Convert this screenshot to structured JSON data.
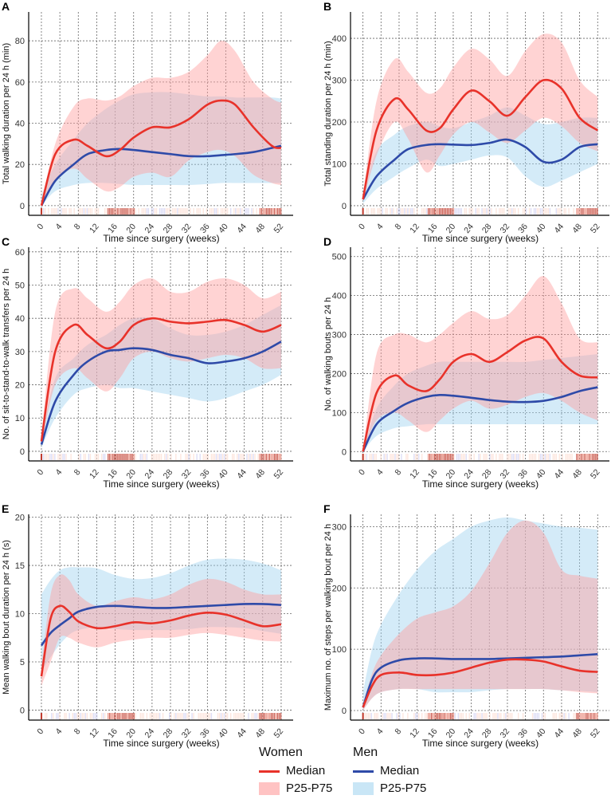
{
  "colors": {
    "women_median": "#e8322a",
    "women_band": "#ff9e9e",
    "men_median": "#2e4aa8",
    "men_band": "#9fd3f0"
  },
  "legend": {
    "women": {
      "title": "Women",
      "median": "Median",
      "band": "P25-P75"
    },
    "men": {
      "title": "Men",
      "median": "Median",
      "band": "P25-P75"
    }
  },
  "chart_data": [
    {
      "panel": "A",
      "type": "line",
      "xlabel": "Time since surgery (weeks)",
      "ylabel": "Total walking duration per 24 h (min)",
      "xlim": [
        -2.76,
        54.6
      ],
      "ylim": [
        -4.7,
        94
      ],
      "xticks": [
        0,
        4,
        8,
        12,
        16,
        20,
        24,
        28,
        32,
        36,
        40,
        44,
        48,
        52
      ],
      "yticks": [
        0,
        20,
        40,
        60,
        80
      ],
      "x": [
        0,
        3,
        7,
        10,
        14,
        17,
        20,
        24,
        28,
        32,
        36,
        39,
        42,
        46,
        50,
        52
      ],
      "series": [
        {
          "name": "Women P25",
          "values": [
            0,
            12,
            18,
            13,
            7,
            9,
            14,
            16,
            14,
            22,
            26,
            27,
            24,
            15,
            11,
            10
          ]
        },
        {
          "name": "Women P75",
          "values": [
            0,
            30,
            48,
            52,
            51,
            53,
            58,
            62,
            62,
            65,
            73,
            80,
            75,
            60,
            52,
            50
          ]
        },
        {
          "name": "Women Median",
          "values": [
            0,
            25,
            32,
            29,
            24,
            27,
            33,
            38,
            38,
            42,
            49,
            51,
            49,
            38,
            29,
            28
          ]
        },
        {
          "name": "Men P25",
          "values": [
            0,
            7,
            10,
            11,
            11,
            10.5,
            10,
            10,
            10,
            10,
            10.5,
            11,
            11,
            11,
            11,
            11
          ]
        },
        {
          "name": "Men P75",
          "values": [
            5,
            20,
            32,
            40,
            47,
            51,
            54,
            55,
            55,
            54,
            53,
            53,
            52.5,
            52.5,
            52.5,
            52
          ]
        },
        {
          "name": "Men Median",
          "values": [
            0,
            12,
            20,
            25,
            27,
            27.5,
            27,
            26,
            25,
            24,
            24,
            24.5,
            25,
            26,
            28,
            29
          ]
        }
      ]
    },
    {
      "panel": "B",
      "type": "line",
      "xlabel": "Time since surgery (weeks)",
      "ylabel": "Total standing duration per 24 h (min)",
      "xlim": [
        -2.76,
        54.6
      ],
      "ylim": [
        -23,
        463
      ],
      "xticks": [
        0,
        4,
        8,
        12,
        16,
        20,
        24,
        28,
        32,
        36,
        40,
        44,
        48,
        52
      ],
      "yticks": [
        0,
        100,
        200,
        300,
        400
      ],
      "x": [
        0,
        3,
        7,
        10,
        14,
        17,
        20,
        24,
        28,
        32,
        36,
        40,
        44,
        48,
        52
      ],
      "series": [
        {
          "name": "Women P25",
          "values": [
            10,
            120,
            200,
            160,
            80,
            120,
            170,
            200,
            175,
            150,
            180,
            210,
            190,
            150,
            130
          ]
        },
        {
          "name": "Women P75",
          "values": [
            20,
            250,
            350,
            320,
            270,
            280,
            330,
            375,
            350,
            310,
            370,
            410,
            390,
            300,
            260
          ]
        },
        {
          "name": "Women Median",
          "values": [
            15,
            180,
            255,
            230,
            180,
            185,
            230,
            275,
            250,
            215,
            260,
            300,
            280,
            210,
            180
          ]
        },
        {
          "name": "Men P25",
          "values": [
            5,
            40,
            70,
            90,
            110,
            95,
            100,
            110,
            120,
            115,
            70,
            45,
            60,
            80,
            100
          ]
        },
        {
          "name": "Men P75",
          "values": [
            30,
            130,
            170,
            190,
            200,
            190,
            185,
            200,
            215,
            235,
            215,
            195,
            200,
            210,
            210
          ]
        },
        {
          "name": "Men Median",
          "values": [
            15,
            70,
            110,
            135,
            145,
            147,
            146,
            145,
            150,
            158,
            140,
            105,
            110,
            140,
            147
          ]
        }
      ]
    },
    {
      "panel": "C",
      "type": "line",
      "xlabel": "Time since surgery (weeks)",
      "ylabel": "No. of sit-to-stand-to-walk transfers per 24 h",
      "xlim": [
        -2.76,
        54.6
      ],
      "ylim": [
        -2.9,
        61.4
      ],
      "xticks": [
        0,
        4,
        8,
        12,
        16,
        20,
        24,
        28,
        32,
        36,
        40,
        44,
        48,
        52
      ],
      "yticks": [
        0,
        10,
        20,
        30,
        40,
        50,
        60
      ],
      "x": [
        0,
        3,
        7,
        10,
        14,
        17,
        20,
        24,
        28,
        32,
        36,
        40,
        44,
        48,
        52
      ],
      "series": [
        {
          "name": "Women P25",
          "values": [
            2,
            20,
            25,
            22,
            18,
            22,
            28,
            30,
            28,
            27,
            28,
            29,
            28,
            25,
            25
          ]
        },
        {
          "name": "Women P75",
          "values": [
            4,
            42,
            49,
            46,
            42,
            45,
            50,
            52,
            48,
            48,
            51,
            52,
            50,
            46,
            48
          ]
        },
        {
          "name": "Women Median",
          "values": [
            3,
            30,
            38,
            35,
            31,
            33,
            38,
            40,
            39,
            38.5,
            39,
            39.5,
            38,
            36,
            38
          ]
        },
        {
          "name": "Men P25",
          "values": [
            1,
            10,
            17,
            19,
            20,
            19,
            19,
            18,
            17,
            16,
            15,
            16,
            18,
            20,
            23
          ]
        },
        {
          "name": "Men P75",
          "values": [
            4,
            22,
            28,
            32,
            35,
            38,
            40,
            40,
            37,
            35,
            35,
            36,
            38,
            41,
            44
          ]
        },
        {
          "name": "Men Median",
          "values": [
            2,
            15,
            23,
            27,
            30,
            30.5,
            31,
            30.5,
            29,
            28,
            26.5,
            27,
            28,
            30,
            33
          ]
        }
      ]
    },
    {
      "panel": "D",
      "type": "line",
      "xlabel": "Time since surgery (weeks)",
      "ylabel": "No. of walking bouts per 24 h",
      "xlim": [
        -2.76,
        54.6
      ],
      "ylim": [
        -24,
        524
      ],
      "xticks": [
        0,
        4,
        8,
        12,
        16,
        20,
        24,
        28,
        32,
        36,
        40,
        44,
        48,
        52
      ],
      "yticks": [
        0,
        100,
        200,
        300,
        400,
        500
      ],
      "x": [
        0,
        3,
        7,
        10,
        14,
        17,
        20,
        24,
        28,
        32,
        36,
        40,
        44,
        48,
        52
      ],
      "series": [
        {
          "name": "Women P25",
          "values": [
            0,
            80,
            100,
            80,
            50,
            80,
            110,
            130,
            110,
            120,
            140,
            150,
            130,
            100,
            80
          ]
        },
        {
          "name": "Women P75",
          "values": [
            0,
            250,
            300,
            300,
            280,
            300,
            330,
            360,
            340,
            350,
            400,
            450,
            380,
            290,
            280
          ]
        },
        {
          "name": "Women Median",
          "values": [
            0,
            150,
            195,
            170,
            155,
            185,
            230,
            250,
            230,
            255,
            285,
            290,
            230,
            195,
            190
          ]
        },
        {
          "name": "Men P25",
          "values": [
            0,
            40,
            60,
            65,
            70,
            70,
            70,
            70,
            70,
            70,
            70,
            70,
            70,
            70,
            70
          ]
        },
        {
          "name": "Men P75",
          "values": [
            0,
            110,
            170,
            200,
            220,
            230,
            230,
            230,
            230,
            230,
            230,
            235,
            240,
            245,
            250
          ]
        },
        {
          "name": "Men Median",
          "values": [
            0,
            70,
            105,
            125,
            140,
            145,
            143,
            138,
            132,
            128,
            127,
            130,
            140,
            155,
            165
          ]
        }
      ]
    },
    {
      "panel": "E",
      "type": "line",
      "xlabel": "Time since surgery (weeks)",
      "ylabel": "Mean walking bout duration per 24 h (s)",
      "xlim": [
        -2.76,
        54.6
      ],
      "ylim": [
        -1.04,
        20.3
      ],
      "xticks": [
        0,
        4,
        8,
        12,
        16,
        20,
        24,
        28,
        32,
        36,
        40,
        44,
        48,
        52
      ],
      "yticks": [
        0,
        5,
        10,
        15,
        20
      ],
      "x": [
        0,
        2,
        4,
        6,
        8,
        12,
        16,
        20,
        24,
        28,
        32,
        36,
        40,
        44,
        48,
        52
      ],
      "series": [
        {
          "name": "Women P25",
          "values": [
            2.5,
            5,
            7.5,
            7.5,
            7,
            6.5,
            7,
            7.3,
            7.5,
            7.5,
            7.8,
            8,
            7.8,
            7.5,
            7.2,
            7.1
          ]
        },
        {
          "name": "Women P75",
          "values": [
            4.5,
            12,
            14,
            13.5,
            12,
            10.8,
            11.3,
            11.7,
            11.5,
            12,
            13,
            13.6,
            13.3,
            12.5,
            12,
            12
          ]
        },
        {
          "name": "Women Median",
          "values": [
            3.5,
            9.5,
            10.8,
            10.2,
            9.2,
            8.5,
            8.7,
            9.1,
            9.0,
            9.3,
            9.8,
            10.1,
            9.9,
            9.3,
            8.7,
            8.9
          ]
        },
        {
          "name": "Men P25",
          "values": [
            4,
            5.5,
            6.8,
            7.8,
            8.3,
            8.6,
            8.4,
            8.3,
            8.3,
            8.3,
            8.4,
            8.6,
            8.6,
            8.5,
            8.2,
            7.9
          ]
        },
        {
          "name": "Men P75",
          "values": [
            12,
            13.5,
            14.5,
            14.8,
            14.8,
            14.7,
            14,
            13.6,
            13.7,
            14.2,
            15,
            15.6,
            15.7,
            15.6,
            15.2,
            14.5
          ]
        },
        {
          "name": "Men Median",
          "values": [
            6.7,
            8,
            8.8,
            9.5,
            10.2,
            10.7,
            10.8,
            10.7,
            10.6,
            10.6,
            10.7,
            10.8,
            10.9,
            11,
            11,
            10.9
          ]
        }
      ]
    },
    {
      "panel": "F",
      "type": "line",
      "xlabel": "Time since surgery (weeks)",
      "ylabel": "Maximum no. of steps per walking bout per 24 h",
      "xlim": [
        -2.76,
        54.6
      ],
      "ylim": [
        -15.6,
        320
      ],
      "xticks": [
        0,
        4,
        8,
        12,
        16,
        20,
        24,
        28,
        32,
        36,
        40,
        44,
        48,
        52
      ],
      "yticks": [
        0,
        100,
        200,
        300
      ],
      "x": [
        0,
        2,
        4,
        8,
        12,
        16,
        20,
        24,
        28,
        32,
        36,
        40,
        44,
        48,
        52
      ],
      "series": [
        {
          "name": "Women P25",
          "values": [
            0,
            20,
            30,
            35,
            35,
            35,
            35,
            35,
            35,
            35,
            35,
            35,
            33,
            30,
            28
          ]
        },
        {
          "name": "Women P75",
          "values": [
            10,
            60,
            90,
            125,
            150,
            160,
            170,
            195,
            240,
            290,
            310,
            290,
            230,
            220,
            215
          ]
        },
        {
          "name": "Women Median",
          "values": [
            5,
            40,
            58,
            62,
            58,
            58,
            62,
            70,
            78,
            83,
            83,
            80,
            72,
            65,
            63
          ]
        },
        {
          "name": "Men P25",
          "values": [
            0,
            20,
            30,
            35,
            35,
            30,
            30,
            30,
            33,
            35,
            35,
            35,
            33,
            32,
            30
          ]
        },
        {
          "name": "Men P75",
          "values": [
            30,
            100,
            140,
            190,
            230,
            260,
            280,
            300,
            310,
            315,
            310,
            305,
            300,
            298,
            295
          ]
        },
        {
          "name": "Men Median",
          "values": [
            5,
            50,
            70,
            82,
            85,
            85,
            84,
            84,
            84,
            85,
            86,
            87,
            88,
            90,
            92
          ]
        }
      ]
    }
  ]
}
